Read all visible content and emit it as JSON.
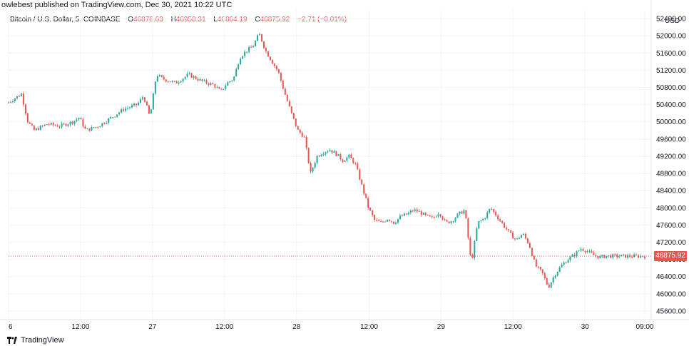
{
  "header": {
    "published": "owlebest published on TradingView.com, Dec 30, 2021 10:22 UTC"
  },
  "legend": {
    "symbol": "Bitcoin / U.S. Dollar, 5, COINBASE",
    "o_label": "O",
    "o": "46878.63",
    "h_label": "H",
    "h": "46950.31",
    "l_label": "L",
    "l": "46864.19",
    "c_label": "C",
    "c": "46875.92",
    "change": "−2.71 (−0.01%)"
  },
  "axis": {
    "currency": "USD",
    "top_label": "52400.00"
  },
  "footer": {
    "brand": "TradingView"
  },
  "colors": {
    "up": "#26a69a",
    "down": "#ef5350",
    "grid": "#f0f3fa",
    "axis": "#131722"
  },
  "chart_data": {
    "type": "line",
    "ylim": [
      45400,
      52600
    ],
    "xlim": [
      0,
      1
    ],
    "yticks": [
      "52400.00",
      "52000.00",
      "51600.00",
      "51200.00",
      "50800.00",
      "50400.00",
      "50000.00",
      "49600.00",
      "49200.00",
      "48800.00",
      "48400.00",
      "48000.00",
      "47600.00",
      "47200.00",
      "46800.00",
      "46400.00",
      "46000.00",
      "45600.00"
    ],
    "ytick_values": [
      52400,
      52000,
      51600,
      51200,
      50800,
      50400,
      50000,
      49600,
      49200,
      48800,
      48400,
      48000,
      47600,
      47200,
      46800,
      46400,
      46000,
      45600
    ],
    "xticks": [
      {
        "label": "6",
        "pos": 0.0
      },
      {
        "label": "12:00",
        "pos": 0.112
      },
      {
        "label": "27",
        "pos": 0.224
      },
      {
        "label": "12:00",
        "pos": 0.336
      },
      {
        "label": "28",
        "pos": 0.448
      },
      {
        "label": "12:00",
        "pos": 0.561
      },
      {
        "label": "29",
        "pos": 0.673
      },
      {
        "label": "12:00",
        "pos": 0.785
      },
      {
        "label": "30",
        "pos": 0.897
      },
      {
        "label": "09:00",
        "pos": 0.99
      }
    ],
    "last_price": 46875.92,
    "last_price_label": "46875.92",
    "series": [
      {
        "x": [
          0.0,
          0.01,
          0.02,
          0.03,
          0.04,
          0.06,
          0.08,
          0.1,
          0.11,
          0.12,
          0.14,
          0.16,
          0.18,
          0.19,
          0.2,
          0.21,
          0.22,
          0.23,
          0.24,
          0.26,
          0.28,
          0.3,
          0.32,
          0.33,
          0.34,
          0.35,
          0.36,
          0.37,
          0.38,
          0.39,
          0.4,
          0.41,
          0.42,
          0.43,
          0.44,
          0.45,
          0.46,
          0.47,
          0.48,
          0.49,
          0.5,
          0.51,
          0.52,
          0.53,
          0.54,
          0.55,
          0.56,
          0.57,
          0.58,
          0.59,
          0.6,
          0.61,
          0.62,
          0.63,
          0.64,
          0.65,
          0.66,
          0.67,
          0.68,
          0.69,
          0.7,
          0.71,
          0.72,
          0.73,
          0.74,
          0.75,
          0.76,
          0.77,
          0.78,
          0.79,
          0.8,
          0.81,
          0.82,
          0.83,
          0.84,
          0.85,
          0.86,
          0.87,
          0.88,
          0.89,
          0.9,
          0.905,
          0.91,
          0.92,
          0.93,
          0.94,
          0.95,
          0.96,
          0.97,
          0.98,
          0.99,
          1.0
        ],
        "values": [
          50450,
          50550,
          50650,
          50000,
          49800,
          49950,
          49900,
          50000,
          50100,
          49800,
          49900,
          50100,
          50300,
          50350,
          50400,
          50600,
          50100,
          51100,
          51000,
          50900,
          51100,
          50950,
          50850,
          50700,
          50900,
          51000,
          51500,
          51650,
          51750,
          52050,
          51650,
          51400,
          51150,
          50650,
          50200,
          49800,
          49650,
          48800,
          49200,
          49300,
          49350,
          49250,
          49100,
          49200,
          49000,
          48500,
          48000,
          47700,
          47650,
          47750,
          47650,
          47800,
          47850,
          47950,
          47900,
          47800,
          47750,
          47900,
          47650,
          47700,
          47850,
          47950,
          46700,
          47650,
          47750,
          48000,
          47800,
          47600,
          47400,
          47250,
          47400,
          47150,
          46650,
          46500,
          46150,
          46450,
          46650,
          46800,
          46900,
          47050,
          47000,
          46950,
          46900,
          46850,
          46880,
          46876,
          46876,
          46876,
          46876,
          46876,
          46876,
          46876
        ]
      }
    ]
  }
}
